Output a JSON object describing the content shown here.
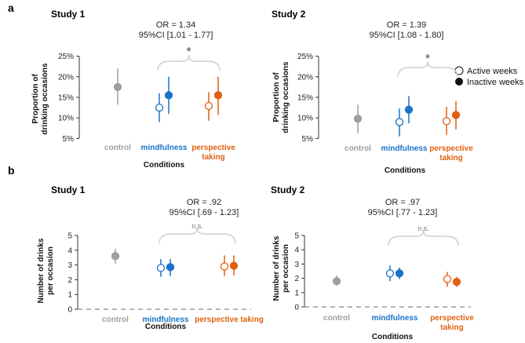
{
  "panel_labels": [
    "a",
    "b"
  ],
  "legend": {
    "active_label": "Active weeks",
    "inactive_label": "Inactive weeks"
  },
  "colors": {
    "control": "#9e9e9e",
    "mindfulness": "#1a73c9",
    "perspective": "#e0600f",
    "bracket": "#cfcfcf"
  },
  "chart_data": [
    {
      "type": "scatter",
      "panel": "a",
      "title": "Study 1",
      "or_line1": "OR = 1.34",
      "or_line2": "95%CI [1.01 - 1.77]",
      "sig_label": "*",
      "sig_type": "star",
      "ylabel_lines": [
        "Proportion of",
        "drinking occasions"
      ],
      "xlabel": "Conditions",
      "ylim": [
        4.5,
        25.5
      ],
      "yticks": [
        5,
        10,
        15,
        20,
        25
      ],
      "ytick_labels": [
        "5%",
        "10%",
        "15%",
        "20%",
        "25%"
      ],
      "baseline": false,
      "categories": [
        {
          "key": "control",
          "lines": [
            "control"
          ],
          "color": "control"
        },
        {
          "key": "mindfulness",
          "lines": [
            "mindfulness"
          ],
          "color": "mindfulness"
        },
        {
          "key": "perspective",
          "lines": [
            "perspective",
            "taking"
          ],
          "color": "perspective"
        }
      ],
      "points": [
        {
          "cat": 0,
          "kind": "single",
          "y": 17.5,
          "lo": 13.2,
          "hi": 22.0
        },
        {
          "cat": 1,
          "kind": "active",
          "y": 12.5,
          "lo": 9.0,
          "hi": 16.0
        },
        {
          "cat": 1,
          "kind": "inactive",
          "y": 15.5,
          "lo": 11.0,
          "hi": 20.0
        },
        {
          "cat": 2,
          "kind": "active",
          "y": 12.9,
          "lo": 9.3,
          "hi": 16.3
        },
        {
          "cat": 2,
          "kind": "inactive",
          "y": 15.5,
          "lo": 10.7,
          "hi": 20.0
        }
      ]
    },
    {
      "type": "scatter",
      "panel": "a",
      "title": "Study 2",
      "or_line1": "OR = 1.39",
      "or_line2": "95%CI [1.08 - 1.80]",
      "sig_label": "*",
      "sig_type": "star",
      "ylabel_lines": [
        "Proportion of",
        "drinking occasions"
      ],
      "xlabel": "Conditions",
      "ylim": [
        4.5,
        25.5
      ],
      "yticks": [
        5,
        10,
        15,
        20,
        25
      ],
      "ytick_labels": [
        "5%",
        "10%",
        "15%",
        "20%",
        "25%"
      ],
      "baseline": false,
      "categories": [
        {
          "key": "control",
          "lines": [
            "control"
          ],
          "color": "control"
        },
        {
          "key": "mindfulness",
          "lines": [
            "mindfulness"
          ],
          "color": "mindfulness"
        },
        {
          "key": "perspective",
          "lines": [
            "perspective",
            "taking"
          ],
          "color": "perspective"
        }
      ],
      "points": [
        {
          "cat": 0,
          "kind": "single",
          "y": 9.8,
          "lo": 6.3,
          "hi": 13.2
        },
        {
          "cat": 1,
          "kind": "active",
          "y": 9.0,
          "lo": 5.5,
          "hi": 12.3
        },
        {
          "cat": 1,
          "kind": "inactive",
          "y": 12.0,
          "lo": 8.7,
          "hi": 15.3
        },
        {
          "cat": 2,
          "kind": "active",
          "y": 9.2,
          "lo": 5.9,
          "hi": 12.7
        },
        {
          "cat": 2,
          "kind": "inactive",
          "y": 10.7,
          "lo": 7.2,
          "hi": 14.1
        }
      ]
    },
    {
      "type": "scatter",
      "panel": "b",
      "title": "Study 1",
      "or_line1": "OR = .92",
      "or_line2": "95%CI [.69 - 1.23]",
      "sig_label": "n.s.",
      "sig_type": "ns",
      "ylabel_lines": [
        "Number of drinks",
        "per occasion"
      ],
      "xlabel": "Conditions",
      "ylim": [
        0,
        5
      ],
      "yticks": [
        0,
        1,
        2,
        3,
        4,
        5
      ],
      "ytick_labels": [
        "0",
        "1",
        "2",
        "3",
        "4",
        "5"
      ],
      "baseline": true,
      "categories": [
        {
          "key": "control",
          "lines": [
            "control"
          ],
          "color": "control"
        },
        {
          "key": "mindfulness",
          "lines": [
            "mindfulness"
          ],
          "color": "mindfulness"
        },
        {
          "key": "perspective",
          "lines": [
            "perspective taking"
          ],
          "color": "perspective"
        }
      ],
      "points": [
        {
          "cat": 0,
          "kind": "single",
          "y": 3.6,
          "lo": 3.1,
          "hi": 4.1
        },
        {
          "cat": 1,
          "kind": "active",
          "y": 2.8,
          "lo": 2.2,
          "hi": 3.4
        },
        {
          "cat": 1,
          "kind": "inactive",
          "y": 2.85,
          "lo": 2.25,
          "hi": 3.4
        },
        {
          "cat": 2,
          "kind": "active",
          "y": 2.9,
          "lo": 2.25,
          "hi": 3.65
        },
        {
          "cat": 2,
          "kind": "inactive",
          "y": 2.95,
          "lo": 2.3,
          "hi": 3.65
        }
      ]
    },
    {
      "type": "scatter",
      "panel": "b",
      "title": "Study 2",
      "or_line1": "OR = .97",
      "or_line2": "95%CI [.77 - 1.23]",
      "sig_label": "n.s.",
      "sig_type": "ns",
      "ylabel_lines": [
        "Number of drinks",
        "per occasion"
      ],
      "xlabel": "Conditions",
      "ylim": [
        0,
        5
      ],
      "yticks": [
        0,
        1,
        2,
        3,
        4,
        5
      ],
      "ytick_labels": [
        "0",
        "1",
        "2",
        "3",
        "4",
        "5"
      ],
      "baseline": true,
      "categories": [
        {
          "key": "control",
          "lines": [
            "control"
          ],
          "color": "control"
        },
        {
          "key": "mindfulness",
          "lines": [
            "mindfulness"
          ],
          "color": "mindfulness"
        },
        {
          "key": "perspective",
          "lines": [
            "perspective",
            "taking"
          ],
          "color": "perspective"
        }
      ],
      "points": [
        {
          "cat": 0,
          "kind": "single",
          "y": 1.8,
          "lo": 1.5,
          "hi": 2.2
        },
        {
          "cat": 1,
          "kind": "active",
          "y": 2.35,
          "lo": 1.8,
          "hi": 2.9
        },
        {
          "cat": 1,
          "kind": "inactive",
          "y": 2.35,
          "lo": 1.95,
          "hi": 2.75
        },
        {
          "cat": 2,
          "kind": "active",
          "y": 1.95,
          "lo": 1.4,
          "hi": 2.45
        },
        {
          "cat": 2,
          "kind": "inactive",
          "y": 1.75,
          "lo": 1.4,
          "hi": 2.1
        }
      ]
    }
  ]
}
